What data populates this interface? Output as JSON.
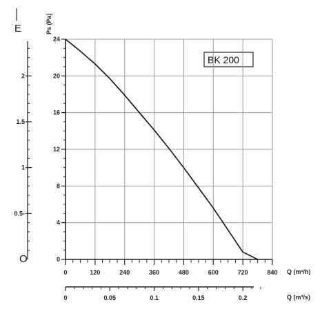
{
  "chart_data": {
    "type": "line",
    "model_label": "BK 200",
    "corner_label": "E",
    "origin_label": "O",
    "x": [
      0,
      60,
      120,
      180,
      240,
      300,
      360,
      420,
      480,
      540,
      600,
      660,
      720,
      780
    ],
    "series": [
      {
        "values": [
          24,
          22.7,
          21.3,
          19.7,
          17.9,
          16.0,
          14.1,
          12.1,
          10.0,
          7.8,
          5.6,
          3.2,
          0.8,
          0
        ]
      }
    ],
    "xlabel": "Q (m³/h)",
    "ylabel": "Ps (Pa)",
    "xlim": [
      0,
      840
    ],
    "ylim": [
      0,
      24
    ],
    "xticks": [
      "0",
      "120",
      "240",
      "360",
      "480",
      "600",
      "720",
      "840"
    ],
    "yticks": [
      "0",
      "4",
      "8",
      "12",
      "16",
      "20",
      "24"
    ],
    "secondary_x": {
      "label": "Q (m³/s)",
      "lim": [
        0,
        0.2333
      ],
      "ticks": [
        0,
        0.05,
        0.1,
        0.15,
        0.2
      ],
      "tick_labels": [
        "0",
        "0.05",
        "0.1",
        "0.15",
        "0.2"
      ]
    },
    "secondary_y": {
      "lim": [
        0,
        2.4
      ],
      "ticks": [
        0.5,
        1,
        1.5,
        2
      ],
      "tick_labels": [
        "0.5-",
        "1",
        "1.5",
        "2"
      ]
    },
    "grid": true,
    "legend": "none"
  }
}
